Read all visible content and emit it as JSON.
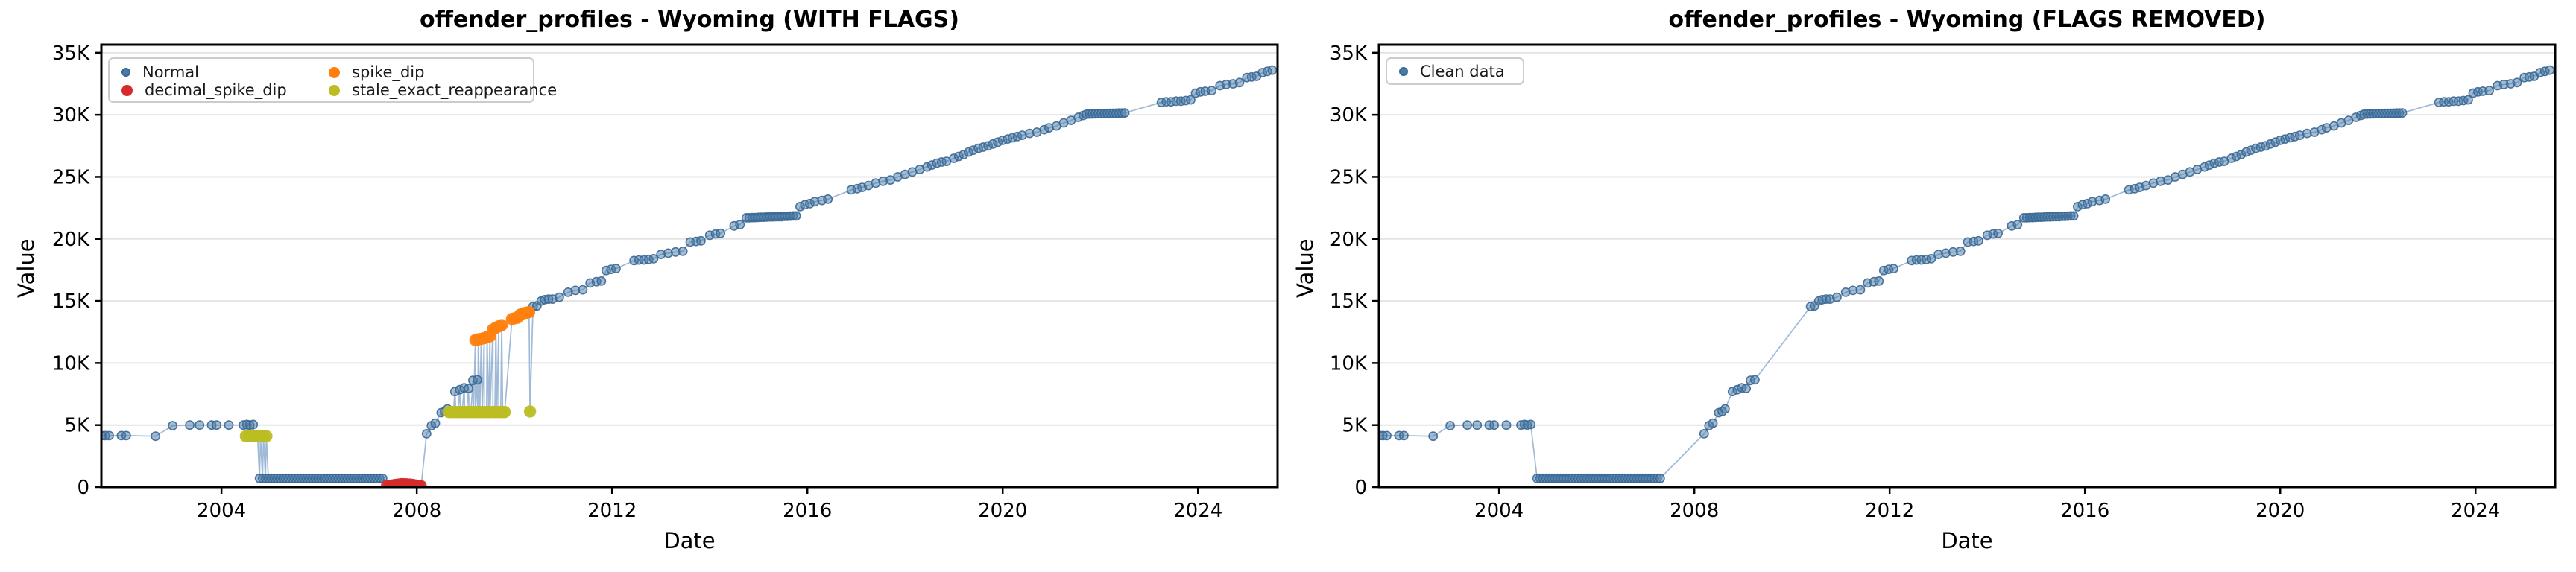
{
  "page": {
    "background": "#ffffff"
  },
  "chart_data": {
    "type": "scatter",
    "layout": "two side-by-side subplots sharing identical axes",
    "x_axis": {
      "label": "Date",
      "ticks": [
        2004,
        2008,
        2012,
        2016,
        2020,
        2024
      ],
      "range": [
        2001.54,
        2025.63
      ]
    },
    "y_axis": {
      "label": "Value",
      "ticks": [
        0,
        5,
        10,
        15,
        20,
        25,
        30,
        35
      ],
      "tick_labels": [
        "0",
        "5K",
        "10K",
        "15K",
        "20K",
        "25K",
        "30K",
        "35K"
      ],
      "range": [
        0,
        35.65
      ],
      "unit": "thousands"
    },
    "grid": "horizontal-only",
    "grid_color": "#e4e4e4",
    "line_color": "#7fa1c8",
    "background": "#ffffff",
    "shared_series": {
      "normal_points": [
        [
          2001.55,
          4.15
        ],
        [
          2001.62,
          4.15
        ],
        [
          2001.7,
          4.15
        ],
        [
          2001.95,
          4.15
        ],
        [
          2002.05,
          4.15
        ],
        [
          2002.65,
          4.1
        ],
        [
          2003.0,
          4.95
        ],
        [
          2003.35,
          5.0
        ],
        [
          2003.55,
          5.0
        ],
        [
          2003.8,
          5.0
        ],
        [
          2003.9,
          5.0
        ],
        [
          2004.15,
          5.0
        ],
        [
          2004.45,
          5.0
        ],
        [
          2004.52,
          5.05
        ],
        [
          2004.58,
          5.0
        ],
        [
          2004.65,
          5.05
        ],
        [
          2004.78,
          0.7
        ],
        [
          2004.84,
          0.7
        ],
        [
          2004.9,
          0.7
        ],
        [
          2004.96,
          0.7
        ],
        [
          2005.02,
          0.7
        ],
        [
          2005.08,
          0.7
        ],
        [
          2005.14,
          0.7
        ],
        [
          2005.2,
          0.7
        ],
        [
          2005.26,
          0.7
        ],
        [
          2005.32,
          0.7
        ],
        [
          2005.38,
          0.7
        ],
        [
          2005.44,
          0.7
        ],
        [
          2005.5,
          0.7
        ],
        [
          2005.56,
          0.7
        ],
        [
          2005.62,
          0.7
        ],
        [
          2005.68,
          0.7
        ],
        [
          2005.74,
          0.7
        ],
        [
          2005.8,
          0.7
        ],
        [
          2005.86,
          0.7
        ],
        [
          2005.92,
          0.7
        ],
        [
          2005.98,
          0.7
        ],
        [
          2006.04,
          0.7
        ],
        [
          2006.1,
          0.7
        ],
        [
          2006.16,
          0.7
        ],
        [
          2006.22,
          0.7
        ],
        [
          2006.28,
          0.7
        ],
        [
          2006.34,
          0.7
        ],
        [
          2006.4,
          0.7
        ],
        [
          2006.46,
          0.7
        ],
        [
          2006.52,
          0.7
        ],
        [
          2006.58,
          0.7
        ],
        [
          2006.64,
          0.7
        ],
        [
          2006.7,
          0.7
        ],
        [
          2006.76,
          0.7
        ],
        [
          2006.82,
          0.7
        ],
        [
          2006.88,
          0.7
        ],
        [
          2006.94,
          0.7
        ],
        [
          2007.0,
          0.7
        ],
        [
          2007.06,
          0.7
        ],
        [
          2007.12,
          0.7
        ],
        [
          2007.18,
          0.7
        ],
        [
          2007.24,
          0.7
        ],
        [
          2007.3,
          0.7
        ],
        [
          2008.2,
          4.3
        ],
        [
          2008.3,
          4.95
        ],
        [
          2008.38,
          5.15
        ],
        [
          2008.5,
          6.0
        ],
        [
          2008.57,
          6.1
        ],
        [
          2008.63,
          6.3
        ],
        [
          2008.78,
          7.7
        ],
        [
          2008.88,
          7.85
        ],
        [
          2008.97,
          8.0
        ],
        [
          2009.06,
          7.95
        ],
        [
          2009.15,
          8.6
        ],
        [
          2009.24,
          8.65
        ],
        [
          2010.38,
          14.55
        ],
        [
          2010.46,
          14.6
        ],
        [
          2010.55,
          15.0
        ],
        [
          2010.62,
          15.1
        ],
        [
          2010.7,
          15.15
        ],
        [
          2010.78,
          15.15
        ],
        [
          2010.92,
          15.3
        ],
        [
          2011.1,
          15.7
        ],
        [
          2011.25,
          15.85
        ],
        [
          2011.4,
          15.9
        ],
        [
          2011.55,
          16.45
        ],
        [
          2011.68,
          16.55
        ],
        [
          2011.78,
          16.6
        ],
        [
          2011.88,
          17.45
        ],
        [
          2011.98,
          17.55
        ],
        [
          2012.08,
          17.6
        ],
        [
          2012.45,
          18.25
        ],
        [
          2012.55,
          18.3
        ],
        [
          2012.65,
          18.3
        ],
        [
          2012.75,
          18.35
        ],
        [
          2012.85,
          18.4
        ],
        [
          2013.0,
          18.75
        ],
        [
          2013.15,
          18.85
        ],
        [
          2013.3,
          18.95
        ],
        [
          2013.45,
          19.0
        ],
        [
          2013.6,
          19.75
        ],
        [
          2013.72,
          19.8
        ],
        [
          2013.82,
          19.85
        ],
        [
          2014.0,
          20.3
        ],
        [
          2014.12,
          20.4
        ],
        [
          2014.22,
          20.45
        ],
        [
          2014.5,
          21.05
        ],
        [
          2014.62,
          21.15
        ],
        [
          2014.75,
          21.7
        ],
        [
          2014.81,
          21.7
        ],
        [
          2014.87,
          21.72
        ],
        [
          2014.93,
          21.72
        ],
        [
          2014.99,
          21.74
        ],
        [
          2015.05,
          21.75
        ],
        [
          2015.11,
          21.75
        ],
        [
          2015.17,
          21.76
        ],
        [
          2015.23,
          21.78
        ],
        [
          2015.29,
          21.78
        ],
        [
          2015.35,
          21.8
        ],
        [
          2015.41,
          21.8
        ],
        [
          2015.47,
          21.8
        ],
        [
          2015.53,
          21.82
        ],
        [
          2015.59,
          21.82
        ],
        [
          2015.65,
          21.84
        ],
        [
          2015.71,
          21.85
        ],
        [
          2015.77,
          21.85
        ],
        [
          2015.85,
          22.6
        ],
        [
          2015.95,
          22.75
        ],
        [
          2016.05,
          22.85
        ],
        [
          2016.15,
          23.0
        ],
        [
          2016.3,
          23.1
        ],
        [
          2016.42,
          23.2
        ],
        [
          2016.9,
          23.95
        ],
        [
          2017.02,
          24.05
        ],
        [
          2017.12,
          24.15
        ],
        [
          2017.25,
          24.3
        ],
        [
          2017.4,
          24.5
        ],
        [
          2017.55,
          24.65
        ],
        [
          2017.7,
          24.75
        ],
        [
          2017.85,
          25.0
        ],
        [
          2018.0,
          25.2
        ],
        [
          2018.15,
          25.4
        ],
        [
          2018.3,
          25.6
        ],
        [
          2018.45,
          25.8
        ],
        [
          2018.55,
          25.95
        ],
        [
          2018.65,
          26.1
        ],
        [
          2018.75,
          26.2
        ],
        [
          2018.85,
          26.25
        ],
        [
          2019.0,
          26.5
        ],
        [
          2019.1,
          26.65
        ],
        [
          2019.2,
          26.8
        ],
        [
          2019.3,
          27.0
        ],
        [
          2019.4,
          27.15
        ],
        [
          2019.5,
          27.3
        ],
        [
          2019.6,
          27.4
        ],
        [
          2019.7,
          27.5
        ],
        [
          2019.8,
          27.65
        ],
        [
          2019.9,
          27.8
        ],
        [
          2020.0,
          27.95
        ],
        [
          2020.1,
          28.05
        ],
        [
          2020.2,
          28.15
        ],
        [
          2020.3,
          28.25
        ],
        [
          2020.4,
          28.35
        ],
        [
          2020.55,
          28.5
        ],
        [
          2020.7,
          28.6
        ],
        [
          2020.85,
          28.8
        ],
        [
          2020.95,
          28.95
        ],
        [
          2021.1,
          29.1
        ],
        [
          2021.25,
          29.35
        ],
        [
          2021.4,
          29.55
        ],
        [
          2021.55,
          29.8
        ],
        [
          2021.65,
          29.95
        ],
        [
          2021.72,
          30.05
        ],
        [
          2021.78,
          30.06
        ],
        [
          2021.84,
          30.07
        ],
        [
          2021.9,
          30.08
        ],
        [
          2021.96,
          30.09
        ],
        [
          2022.02,
          30.1
        ],
        [
          2022.08,
          30.1
        ],
        [
          2022.14,
          30.11
        ],
        [
          2022.2,
          30.12
        ],
        [
          2022.26,
          30.12
        ],
        [
          2022.32,
          30.13
        ],
        [
          2022.38,
          30.14
        ],
        [
          2022.44,
          30.14
        ],
        [
          2022.5,
          30.15
        ],
        [
          2023.25,
          31.0
        ],
        [
          2023.35,
          31.05
        ],
        [
          2023.45,
          31.05
        ],
        [
          2023.55,
          31.1
        ],
        [
          2023.65,
          31.1
        ],
        [
          2023.75,
          31.15
        ],
        [
          2023.85,
          31.2
        ],
        [
          2023.95,
          31.75
        ],
        [
          2024.05,
          31.85
        ],
        [
          2024.15,
          31.9
        ],
        [
          2024.28,
          31.95
        ],
        [
          2024.45,
          32.35
        ],
        [
          2024.58,
          32.45
        ],
        [
          2024.72,
          32.5
        ],
        [
          2024.85,
          32.6
        ],
        [
          2025.0,
          33.0
        ],
        [
          2025.1,
          33.05
        ],
        [
          2025.2,
          33.1
        ],
        [
          2025.32,
          33.4
        ],
        [
          2025.42,
          33.5
        ],
        [
          2025.52,
          33.6
        ]
      ]
    },
    "charts": [
      {
        "title": "offender_profiles - Wyoming (WITH FLAGS)",
        "legend_columns": 2,
        "connect": "all",
        "series": [
          {
            "name": "Normal",
            "color": "#4a7ba6",
            "edge_color": "#3a6795",
            "marker_size": "small",
            "points_ref": "normal_points"
          },
          {
            "name": "decimal_spike_dip",
            "color": "#d62b2b",
            "marker_size": "large",
            "points": [
              [
                2007.38,
                0.12
              ],
              [
                2007.44,
                0.15
              ],
              [
                2007.5,
                0.18
              ],
              [
                2007.56,
                0.22
              ],
              [
                2007.62,
                0.25
              ],
              [
                2007.68,
                0.28
              ],
              [
                2007.74,
                0.28
              ],
              [
                2007.8,
                0.27
              ],
              [
                2007.86,
                0.25
              ],
              [
                2007.92,
                0.22
              ],
              [
                2007.98,
                0.18
              ],
              [
                2008.04,
                0.15
              ],
              [
                2008.09,
                0.12
              ]
            ]
          },
          {
            "name": "spike_dip",
            "color": "#ff7f0e",
            "marker_size": "large",
            "points": [
              [
                2009.2,
                11.85
              ],
              [
                2009.26,
                11.9
              ],
              [
                2009.32,
                11.95
              ],
              [
                2009.38,
                12.0
              ],
              [
                2009.44,
                12.1
              ],
              [
                2009.5,
                12.15
              ],
              [
                2009.56,
                12.7
              ],
              [
                2009.62,
                12.85
              ],
              [
                2009.68,
                12.95
              ],
              [
                2009.74,
                13.05
              ],
              [
                2009.95,
                13.55
              ],
              [
                2010.0,
                13.6
              ],
              [
                2010.06,
                13.65
              ],
              [
                2010.12,
                13.9
              ],
              [
                2010.18,
                14.0
              ],
              [
                2010.24,
                14.05
              ],
              [
                2010.3,
                14.1
              ]
            ]
          },
          {
            "name": "stale_exact_reappearance",
            "color": "#bcbd22",
            "marker_size": "large",
            "points": [
              [
                2004.5,
                4.1
              ],
              [
                2004.56,
                4.1
              ],
              [
                2004.62,
                4.12
              ],
              [
                2004.68,
                4.1
              ],
              [
                2004.74,
                4.12
              ],
              [
                2004.8,
                4.1
              ],
              [
                2004.86,
                4.1
              ],
              [
                2004.92,
                4.1
              ],
              [
                2008.66,
                6.05
              ],
              [
                2008.705,
                6.05
              ],
              [
                2008.75,
                6.05
              ],
              [
                2008.8,
                6.05
              ],
              [
                2008.84,
                6.05
              ],
              [
                2008.89,
                6.05
              ],
              [
                2008.93,
                6.05
              ],
              [
                2008.98,
                6.05
              ],
              [
                2009.02,
                6.05
              ],
              [
                2009.07,
                6.05
              ],
              [
                2009.11,
                6.05
              ],
              [
                2009.16,
                6.05
              ],
              [
                2009.2,
                6.05
              ],
              [
                2009.25,
                6.05
              ],
              [
                2009.29,
                6.05
              ],
              [
                2009.34,
                6.05
              ],
              [
                2009.38,
                6.05
              ],
              [
                2009.43,
                6.05
              ],
              [
                2009.47,
                6.05
              ],
              [
                2009.5,
                6.05
              ],
              [
                2009.56,
                6.05
              ],
              [
                2009.6,
                6.05
              ],
              [
                2009.64,
                6.05
              ],
              [
                2009.68,
                6.05
              ],
              [
                2009.72,
                6.05
              ],
              [
                2009.76,
                6.05
              ],
              [
                2009.8,
                6.05
              ],
              [
                2010.32,
                6.1
              ]
            ]
          }
        ]
      },
      {
        "title": "offender_profiles - Wyoming (FLAGS REMOVED)",
        "legend_columns": 1,
        "connect": "all",
        "series": [
          {
            "name": "Clean data",
            "color": "#4a7ba6",
            "edge_color": "#3a6795",
            "marker_size": "small",
            "points_ref": "normal_points"
          }
        ]
      }
    ]
  }
}
